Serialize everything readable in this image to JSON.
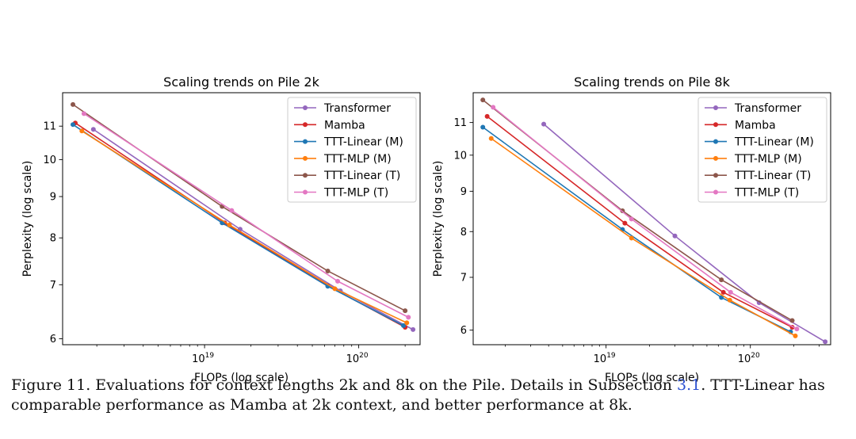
{
  "chart_data": [
    {
      "type": "line",
      "title": "Scaling trends on Pile 2k",
      "xlabel": "FLOPs (log scale)",
      "ylabel": "Perplexity (log scale)",
      "xscale": "log",
      "yscale": "log",
      "xlim": [
        1.2e+18,
        2.5e+20
      ],
      "ylim": [
        5.9,
        12.1
      ],
      "xticks": [
        {
          "value": 1e+19,
          "base": "10",
          "exp": "19"
        },
        {
          "value": 1e+20,
          "base": "10",
          "exp": "20"
        }
      ],
      "yticks": [
        6,
        7,
        8,
        9,
        10,
        11
      ],
      "legend_position": "top-right",
      "series": [
        {
          "name": "Transformer",
          "color": "#9467bd",
          "x": [
            1.9e+18,
            1.7e+19,
            7.6e+19,
            2.25e+20
          ],
          "y": [
            10.9,
            8.2,
            6.88,
            6.16
          ]
        },
        {
          "name": "Mamba",
          "color": "#d62728",
          "x": [
            1.45e+18,
            1.35e+19,
            6.3e+19,
            2e+20
          ],
          "y": [
            11.1,
            8.35,
            6.98,
            6.2
          ]
        },
        {
          "name": "TTT-Linear (M)",
          "color": "#1f77b4",
          "x": [
            1.4e+18,
            1.3e+19,
            6.3e+19,
            1.95e+20
          ],
          "y": [
            11.05,
            8.35,
            6.97,
            6.23
          ]
        },
        {
          "name": "TTT-MLP (M)",
          "color": "#ff7f0e",
          "x": [
            1.6e+18,
            1.45e+19,
            7e+19,
            2.05e+20
          ],
          "y": [
            10.85,
            8.3,
            6.92,
            6.28
          ]
        },
        {
          "name": "TTT-Linear (T)",
          "color": "#8c564b",
          "x": [
            1.4e+18,
            1.3e+19,
            6.3e+19,
            2e+20
          ],
          "y": [
            11.7,
            8.75,
            7.28,
            6.5
          ]
        },
        {
          "name": "TTT-MLP (T)",
          "color": "#e377c2",
          "x": [
            1.65e+18,
            1.5e+19,
            7.3e+19,
            2.1e+20
          ],
          "y": [
            11.4,
            8.65,
            7.07,
            6.38
          ]
        }
      ]
    },
    {
      "type": "line",
      "title": "Scaling trends on Pile 8k",
      "xlabel": "FLOPs (log scale)",
      "ylabel": "Perplexity (log scale)",
      "xscale": "log",
      "yscale": "log",
      "xlim": [
        1.2e+18,
        3.6e+20
      ],
      "ylim": [
        5.75,
        12.0
      ],
      "xticks": [
        {
          "value": 1e+19,
          "base": "10",
          "exp": "19"
        },
        {
          "value": 1e+20,
          "base": "10",
          "exp": "20"
        }
      ],
      "yticks": [
        6,
        7,
        8,
        9,
        10,
        11
      ],
      "legend_position": "top-right",
      "series": [
        {
          "name": "Transformer",
          "color": "#9467bd",
          "x": [
            3.7e+18,
            3e+19,
            1.15e+20,
            3.3e+20
          ],
          "y": [
            10.95,
            7.9,
            6.5,
            5.8
          ]
        },
        {
          "name": "Mamba",
          "color": "#d62728",
          "x": [
            1.5e+18,
            1.35e+19,
            6.5e+19,
            1.95e+20
          ],
          "y": [
            11.2,
            8.2,
            6.7,
            6.05
          ]
        },
        {
          "name": "TTT-Linear (M)",
          "color": "#1f77b4",
          "x": [
            1.4e+18,
            1.3e+19,
            6.3e+19,
            1.9e+20
          ],
          "y": [
            10.85,
            8.05,
            6.6,
            5.97
          ]
        },
        {
          "name": "TTT-MLP (M)",
          "color": "#ff7f0e",
          "x": [
            1.6e+18,
            1.5e+19,
            7.2e+19,
            2.05e+20
          ],
          "y": [
            10.5,
            7.85,
            6.55,
            5.9
          ]
        },
        {
          "name": "TTT-Linear (T)",
          "color": "#8c564b",
          "x": [
            1.4e+18,
            1.3e+19,
            6.3e+19,
            1.95e+20
          ],
          "y": [
            11.75,
            8.5,
            6.95,
            6.17
          ]
        },
        {
          "name": "TTT-MLP (T)",
          "color": "#e377c2",
          "x": [
            1.65e+18,
            1.5e+19,
            7.3e+19,
            2.1e+20
          ],
          "y": [
            11.5,
            8.3,
            6.7,
            6.02
          ]
        }
      ]
    }
  ],
  "caption": {
    "prefix": "Figure 11. Evaluations for context lengths 2k and 8k on the Pile. Details in Subsection ",
    "link": "3.1",
    "suffix": ". TTT-Linear has",
    "line2": "comparable performance as Mamba at 2k context, and better performance at 8k."
  }
}
